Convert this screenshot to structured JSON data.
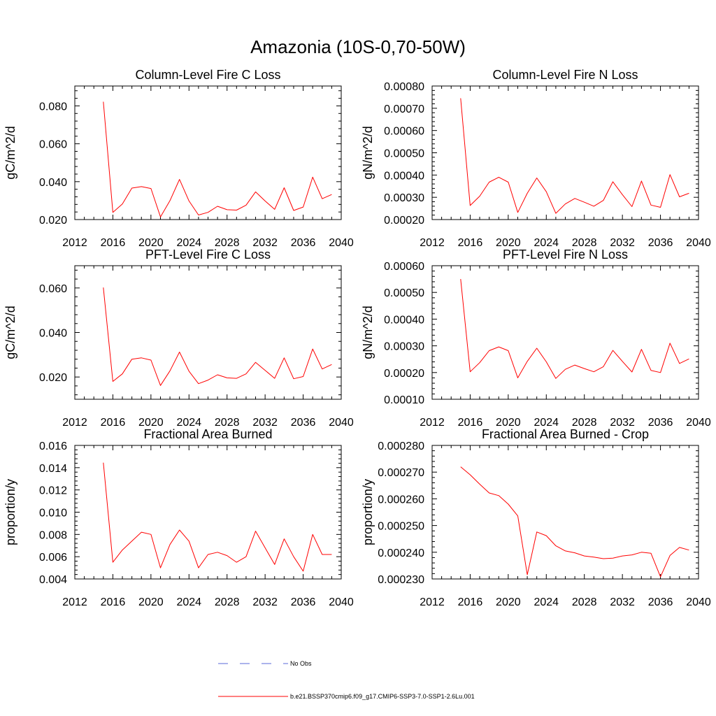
{
  "figure": {
    "title": "Amazonia (10S-0,70-50W)",
    "legend": [
      {
        "label": "No Obs",
        "color": "#5a6ad8",
        "style": "dashed"
      },
      {
        "label": "b.e21.BSSP370cmip6.f09_g17.CMIP6-SSP3-7.0-SSP1-2.6Lu.001",
        "color": "#ff0000",
        "style": "solid"
      }
    ]
  },
  "chart_data": [
    {
      "type": "line",
      "title": "Column-Level Fire C Loss",
      "ylabel": "gC/m^2/d",
      "xlim": [
        2012,
        2040
      ],
      "ylim": [
        0.02,
        0.0905
      ],
      "xticks": [
        2012,
        2016,
        2020,
        2024,
        2028,
        2032,
        2036,
        2040
      ],
      "yticks": [
        0.02,
        0.04,
        0.06,
        0.08
      ],
      "ytick_labels": [
        "0.020",
        "0.040",
        "0.060",
        "0.080"
      ],
      "x": [
        2015,
        2016,
        2017,
        2018,
        2019,
        2020,
        2021,
        2022,
        2023,
        2024,
        2025,
        2026,
        2027,
        2028,
        2029,
        2030,
        2031,
        2032,
        2033,
        2034,
        2035,
        2036,
        2037,
        2038,
        2039
      ],
      "series": [
        {
          "color": "#ff0000",
          "values": [
            0.0822,
            0.0238,
            0.0282,
            0.0366,
            0.0374,
            0.0364,
            0.0214,
            0.03,
            0.0412,
            0.0298,
            0.0224,
            0.0238,
            0.027,
            0.0252,
            0.025,
            0.0276,
            0.0346,
            0.0298,
            0.0254,
            0.0368,
            0.0248,
            0.0266,
            0.0424,
            0.031,
            0.0332
          ]
        }
      ]
    },
    {
      "type": "line",
      "title": "Column-Level Fire N Loss",
      "ylabel": "gN/m^2/d",
      "xlim": [
        2012,
        2040
      ],
      "ylim": [
        0.0002,
        0.0008
      ],
      "xticks": [
        2012,
        2016,
        2020,
        2024,
        2028,
        2032,
        2036,
        2040
      ],
      "yticks": [
        0.0002,
        0.0003,
        0.0004,
        0.0005,
        0.0006,
        0.0007,
        0.0008
      ],
      "ytick_labels": [
        "0.00020",
        "0.00030",
        "0.00040",
        "0.00050",
        "0.00060",
        "0.00070",
        "0.00080"
      ],
      "x": [
        2015,
        2016,
        2017,
        2018,
        2019,
        2020,
        2021,
        2022,
        2023,
        2024,
        2025,
        2026,
        2027,
        2028,
        2029,
        2030,
        2031,
        2032,
        2033,
        2034,
        2035,
        2036,
        2037,
        2038,
        2039
      ],
      "series": [
        {
          "color": "#ff0000",
          "values": [
            0.000745,
            0.000263,
            0.000305,
            0.000368,
            0.00039,
            0.000368,
            0.000232,
            0.000318,
            0.000387,
            0.000325,
            0.000228,
            0.00027,
            0.000295,
            0.000278,
            0.00026,
            0.000286,
            0.00037,
            0.000312,
            0.000258,
            0.000373,
            0.000265,
            0.000255,
            0.000402,
            0.000302,
            0.000318
          ]
        }
      ]
    },
    {
      "type": "line",
      "title": "PFT-Level Fire C Loss",
      "ylabel": "gC/m^2/d",
      "xlim": [
        2012,
        2040
      ],
      "ylim": [
        0.01,
        0.07
      ],
      "xticks": [
        2012,
        2016,
        2020,
        2024,
        2028,
        2032,
        2036,
        2040
      ],
      "yticks": [
        0.02,
        0.04,
        0.06
      ],
      "ytick_labels": [
        "0.020",
        "0.040",
        "0.060"
      ],
      "x": [
        2015,
        2016,
        2017,
        2018,
        2019,
        2020,
        2021,
        2022,
        2023,
        2024,
        2025,
        2026,
        2027,
        2028,
        2029,
        2030,
        2031,
        2032,
        2033,
        2034,
        2035,
        2036,
        2037,
        2038,
        2039
      ],
      "series": [
        {
          "color": "#ff0000",
          "values": [
            0.0602,
            0.018,
            0.0214,
            0.028,
            0.0286,
            0.0276,
            0.0162,
            0.0228,
            0.0312,
            0.0226,
            0.017,
            0.0186,
            0.021,
            0.0196,
            0.0194,
            0.0214,
            0.0266,
            0.023,
            0.0194,
            0.0286,
            0.0192,
            0.0202,
            0.0326,
            0.0236,
            0.0256
          ]
        }
      ]
    },
    {
      "type": "line",
      "title": "PFT-Level Fire N Loss",
      "ylabel": "gN/m^2/d",
      "xlim": [
        2012,
        2040
      ],
      "ylim": [
        0.0001,
        0.0006
      ],
      "xticks": [
        2012,
        2016,
        2020,
        2024,
        2028,
        2032,
        2036,
        2040
      ],
      "yticks": [
        0.0001,
        0.0002,
        0.0003,
        0.0004,
        0.0005,
        0.0006
      ],
      "ytick_labels": [
        "0.00010",
        "0.00020",
        "0.00030",
        "0.00040",
        "0.00050",
        "0.00060"
      ],
      "x": [
        2015,
        2016,
        2017,
        2018,
        2019,
        2020,
        2021,
        2022,
        2023,
        2024,
        2025,
        2026,
        2027,
        2028,
        2029,
        2030,
        2031,
        2032,
        2033,
        2034,
        2035,
        2036,
        2037,
        2038,
        2039
      ],
      "series": [
        {
          "color": "#ff0000",
          "values": [
            0.00055,
            0.000203,
            0.000237,
            0.000282,
            0.000296,
            0.000282,
            0.00018,
            0.000242,
            0.000291,
            0.00024,
            0.000178,
            0.000212,
            0.000228,
            0.000215,
            0.000203,
            0.000222,
            0.000283,
            0.000242,
            0.000202,
            0.000287,
            0.000208,
            0.0002,
            0.00031,
            0.000234,
            0.000251
          ]
        }
      ]
    },
    {
      "type": "line",
      "title": "Fractional Area Burned",
      "ylabel": "proportion/y",
      "xlim": [
        2012,
        2040
      ],
      "ylim": [
        0.004,
        0.016
      ],
      "xticks": [
        2012,
        2016,
        2020,
        2024,
        2028,
        2032,
        2036,
        2040
      ],
      "yticks": [
        0.004,
        0.006,
        0.008,
        0.01,
        0.012,
        0.014,
        0.016
      ],
      "ytick_labels": [
        "0.004",
        "0.006",
        "0.008",
        "0.010",
        "0.012",
        "0.014",
        "0.016"
      ],
      "x": [
        2015,
        2016,
        2017,
        2018,
        2019,
        2020,
        2021,
        2022,
        2023,
        2024,
        2025,
        2026,
        2027,
        2028,
        2029,
        2030,
        2031,
        2032,
        2033,
        2034,
        2035,
        2036,
        2037,
        2038,
        2039
      ],
      "series": [
        {
          "color": "#ff0000",
          "values": [
            0.01445,
            0.0055,
            0.0066,
            0.0074,
            0.0082,
            0.008,
            0.005,
            0.0071,
            0.0084,
            0.0074,
            0.005,
            0.0062,
            0.0064,
            0.0061,
            0.0055,
            0.006,
            0.0083,
            0.0068,
            0.0053,
            0.0076,
            0.006,
            0.0047,
            0.008,
            0.0062,
            0.0062
          ]
        }
      ]
    },
    {
      "type": "line",
      "title": "Fractional Area Burned - Crop",
      "ylabel": "proportion/y",
      "xlim": [
        2012,
        2040
      ],
      "ylim": [
        0.00023,
        0.00028
      ],
      "xticks": [
        2012,
        2016,
        2020,
        2024,
        2028,
        2032,
        2036,
        2040
      ],
      "yticks": [
        0.00023,
        0.00024,
        0.00025,
        0.00026,
        0.00027,
        0.00028
      ],
      "ytick_labels": [
        "0.000230",
        "0.000240",
        "0.000250",
        "0.000260",
        "0.000270",
        "0.000280"
      ],
      "x": [
        2015,
        2016,
        2017,
        2018,
        2019,
        2020,
        2021,
        2022,
        2023,
        2024,
        2025,
        2026,
        2027,
        2028,
        2029,
        2030,
        2031,
        2032,
        2033,
        2034,
        2035,
        2036,
        2037,
        2038,
        2039
      ],
      "series": [
        {
          "color": "#ff0000",
          "values": [
            0.000272,
            0.000269,
            0.0002655,
            0.0002622,
            0.0002612,
            0.000258,
            0.0002536,
            0.0002316,
            0.0002476,
            0.0002462,
            0.0002424,
            0.0002405,
            0.0002398,
            0.0002386,
            0.0002382,
            0.0002376,
            0.0002378,
            0.0002386,
            0.000239,
            0.00024,
            0.0002396,
            0.0002308,
            0.0002388,
            0.0002418,
            0.0002408
          ]
        }
      ]
    }
  ]
}
